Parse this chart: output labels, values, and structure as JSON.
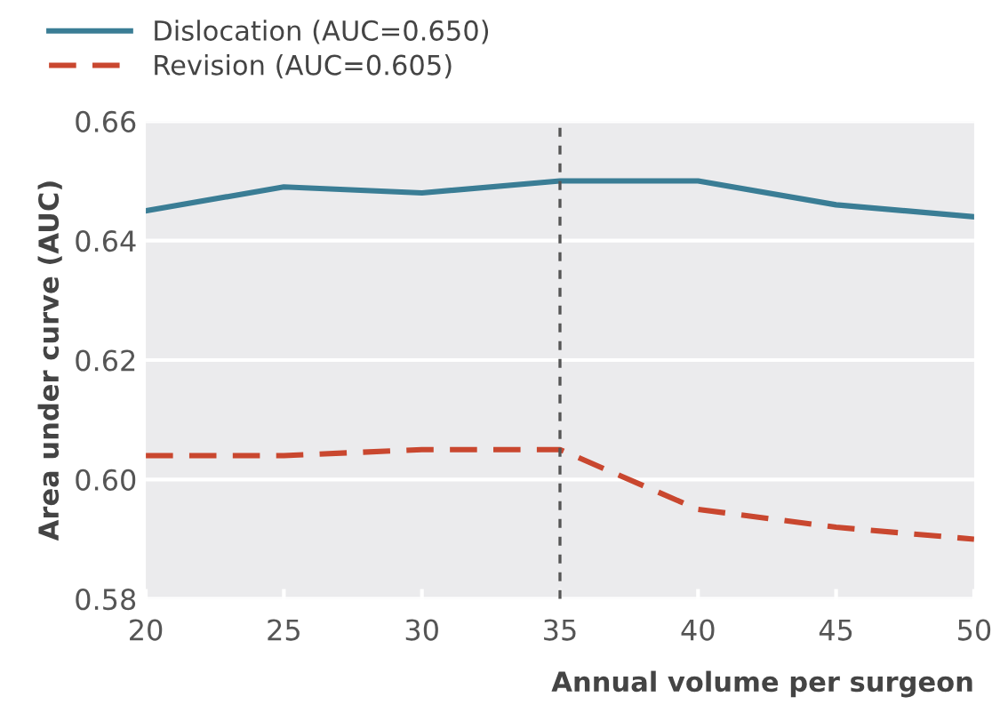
{
  "chart_data": {
    "type": "line",
    "xlabel": "Annual volume per surgeon",
    "ylabel": "Area under curve (AUC)",
    "x": [
      20,
      25,
      30,
      35,
      40,
      45,
      50
    ],
    "series": [
      {
        "name": "Dislocation (AUC=0.650)",
        "color": "#3a7d95",
        "line_style": "solid",
        "values": [
          0.645,
          0.649,
          0.648,
          0.65,
          0.65,
          0.646,
          0.644
        ]
      },
      {
        "name": "Revision (AUC=0.605)",
        "color": "#c9472f",
        "line_style": "dashed",
        "values": [
          0.604,
          0.604,
          0.605,
          0.605,
          0.595,
          0.592,
          0.59
        ]
      }
    ],
    "xlim": [
      20,
      50
    ],
    "xticks": [
      20,
      25,
      30,
      35,
      40,
      45,
      50
    ],
    "ylim": [
      0.58,
      0.66
    ],
    "yticks": [
      {
        "value": 0.58,
        "label": "0.58"
      },
      {
        "value": 0.6,
        "label": "0.60"
      },
      {
        "value": 0.62,
        "label": "0.62"
      },
      {
        "value": 0.64,
        "label": "0.64"
      },
      {
        "value": 0.66,
        "label": "0.66"
      }
    ],
    "ref_lines": [
      {
        "axis": "x",
        "value": 35,
        "color": "#555555",
        "line_style": "dotted"
      }
    ],
    "grid": "y",
    "legend": "top left",
    "marker": "none"
  }
}
